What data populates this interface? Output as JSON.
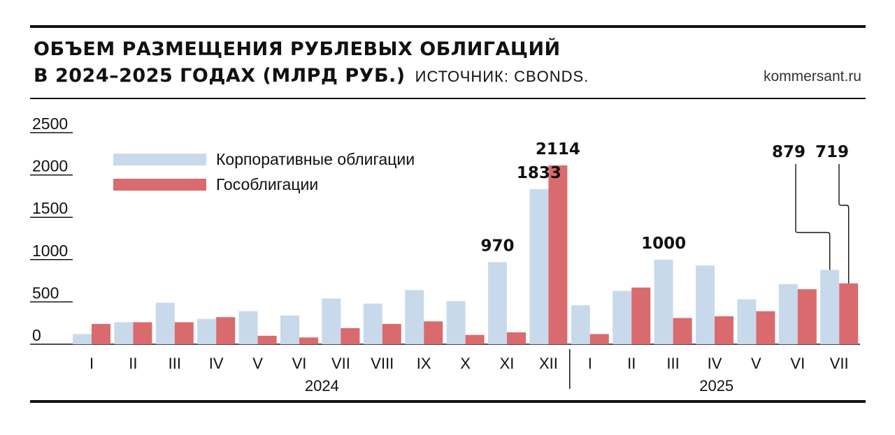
{
  "header": {
    "title_line1": "ОБЪЕМ РАЗМЕЩЕНИЯ РУБЛЕВЫХ ОБЛИГАЦИЙ",
    "title_line2": "В 2024–2025 ГОДАХ (МЛРД РУБ.)",
    "source": "ИСТОЧНИК: CBONDS.",
    "site": "kommersant.ru"
  },
  "colors": {
    "corporate": "#c9d9ec",
    "government": "#d96b6e",
    "ink": "#111111"
  },
  "chart_data": {
    "type": "bar",
    "title": "ОБЪЕМ РАЗМЕЩЕНИЯ РУБЛЕВЫХ ОБЛИГАЦИЙ В 2024–2025 ГОДАХ (МЛРД РУБ.)",
    "categories": [
      "I",
      "II",
      "III",
      "IV",
      "V",
      "VI",
      "VII",
      "VIII",
      "IX",
      "X",
      "XI",
      "XII",
      "I",
      "II",
      "III",
      "IV",
      "V",
      "VI",
      "VII"
    ],
    "groups": [
      {
        "label": "2024",
        "count": 12
      },
      {
        "label": "2025",
        "count": 7
      }
    ],
    "series": [
      {
        "name": "Корпоративные облигации",
        "values": [
          120,
          260,
          490,
          300,
          390,
          340,
          540,
          480,
          640,
          510,
          970,
          1833,
          460,
          630,
          1000,
          930,
          530,
          710,
          879
        ]
      },
      {
        "name": "Гособлигации",
        "values": [
          240,
          260,
          260,
          320,
          100,
          80,
          190,
          240,
          270,
          110,
          140,
          2114,
          120,
          670,
          310,
          330,
          390,
          650,
          719
        ]
      }
    ],
    "data_labels": [
      {
        "category_index": 10,
        "series": 0,
        "text": "970"
      },
      {
        "category_index": 11,
        "series": 0,
        "text": "1833"
      },
      {
        "category_index": 11,
        "series": 1,
        "text": "2114"
      },
      {
        "category_index": 14,
        "series": 0,
        "text": "1000"
      },
      {
        "category_index": 18,
        "series": 0,
        "text": "879"
      },
      {
        "category_index": 18,
        "series": 1,
        "text": "719"
      }
    ],
    "yticks": [
      "2500",
      "2000",
      "1500",
      "1000",
      "500",
      "0"
    ],
    "ylim": [
      0,
      2500
    ],
    "legend_position": "top-left",
    "xlabel": "",
    "ylabel": ""
  }
}
